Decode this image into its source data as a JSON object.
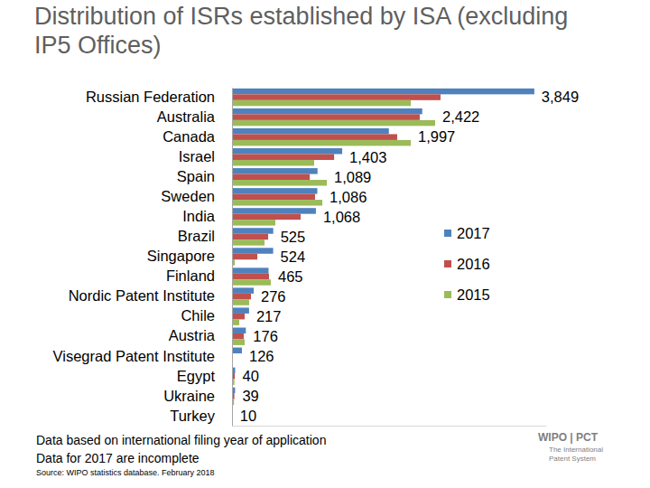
{
  "chart_data": {
    "type": "bar",
    "orientation": "horizontal",
    "title": "Distribution of ISRs established by ISA (excluding IP5 Offices)",
    "categories": [
      "Russian Federation",
      "Australia",
      "Canada",
      "Israel",
      "Spain",
      "Sweden",
      "India",
      "Brazil",
      "Singapore",
      "Finland",
      "Nordic Patent Institute",
      "Chile",
      "Austria",
      "Visegrad Patent Institute",
      "Egypt",
      "Ukraine",
      "Turkey"
    ],
    "series": [
      {
        "name": "2017",
        "color": "#4f81bd",
        "values": [
          3849,
          2422,
          1997,
          1403,
          1089,
          1086,
          1068,
          525,
          524,
          465,
          276,
          217,
          176,
          126,
          40,
          39,
          10
        ],
        "value_labels": [
          "3,849",
          "2,422",
          "1,997",
          "1,403",
          "1,089",
          "1,086",
          "1,068",
          "525",
          "524",
          "465",
          "276",
          "217",
          "176",
          "126",
          "40",
          "39",
          "10"
        ]
      },
      {
        "name": "2016",
        "color": "#c0504d",
        "values": [
          2655,
          2390,
          2103,
          1300,
          990,
          1057,
          874,
          460,
          322,
          471,
          241,
          161,
          149,
          0,
          35,
          30,
          0
        ]
      },
      {
        "name": "2015",
        "color": "#9bbb59",
        "values": [
          2276,
          2586,
          2276,
          1046,
          1207,
          1150,
          552,
          414,
          35,
          494,
          218,
          92,
          161,
          0,
          30,
          25,
          0
        ]
      }
    ],
    "xlim": [
      0,
      4000
    ],
    "data_labels": true,
    "tick_labels": "y",
    "legend": "right",
    "grid": false,
    "annotations": [
      "Data based on international filing year of application",
      "Data for 2017 are incomplete",
      "Source: WIPO statistics database. February 2018",
      "WIPO | PCT",
      "The International",
      "Patent System"
    ]
  }
}
